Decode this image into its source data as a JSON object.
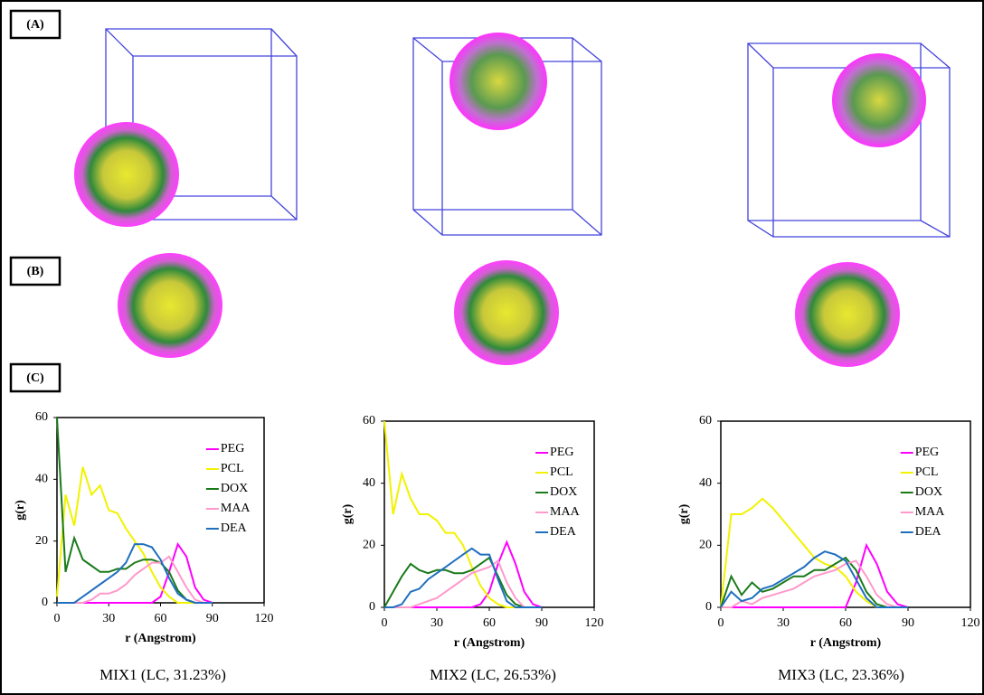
{
  "panel_labels": [
    "(A)",
    "(B)",
    "(C)"
  ],
  "chart_data": [
    {
      "type": "line",
      "title": "MIX1 (LC, 31.23%)",
      "x_label": "r (Angstrom)",
      "y_label": "g(r)",
      "xlim": [
        0,
        120
      ],
      "ylim": [
        0,
        60
      ],
      "xticks": [
        0,
        30,
        60,
        90,
        120
      ],
      "yticks": [
        0,
        20,
        40,
        60
      ],
      "x": [
        0,
        5,
        10,
        15,
        20,
        25,
        30,
        35,
        40,
        45,
        50,
        55,
        60,
        65,
        70,
        75,
        80,
        85,
        90
      ],
      "series": [
        {
          "name": "PEG",
          "color": "#ff00ff",
          "values": [
            0,
            0,
            0,
            0,
            0,
            0,
            0,
            0,
            0,
            0,
            0,
            0,
            2,
            10,
            19,
            15,
            5,
            1,
            0
          ]
        },
        {
          "name": "PCL",
          "color": "#f2f200",
          "values": [
            2,
            35,
            25,
            44,
            35,
            38,
            30,
            29,
            24,
            20,
            16,
            10,
            5,
            2,
            0,
            0,
            0,
            0,
            0
          ]
        },
        {
          "name": "DOX",
          "color": "#1a7a1a",
          "values": [
            60,
            10,
            21,
            14,
            12,
            10,
            10,
            11,
            11,
            13,
            14,
            14,
            13,
            10,
            4,
            1,
            0,
            0,
            0
          ]
        },
        {
          "name": "MAA",
          "color": "#ff99cc",
          "values": [
            0,
            0,
            0,
            0,
            1,
            3,
            3,
            4,
            6,
            9,
            11,
            13,
            13,
            15,
            10,
            5,
            1,
            0,
            0
          ]
        },
        {
          "name": "DEA",
          "color": "#1f6fbf",
          "values": [
            0,
            0,
            0,
            2,
            4,
            6,
            8,
            10,
            13,
            19,
            19,
            18,
            14,
            8,
            3,
            1,
            0,
            0,
            0
          ]
        }
      ]
    },
    {
      "type": "line",
      "title": "MIX2 (LC, 26.53%)",
      "x_label": "r (Angstrom)",
      "y_label": "g(r)",
      "xlim": [
        0,
        120
      ],
      "ylim": [
        0,
        60
      ],
      "xticks": [
        0,
        30,
        60,
        90,
        120
      ],
      "yticks": [
        0,
        20,
        40,
        60
      ],
      "x": [
        0,
        5,
        10,
        15,
        20,
        25,
        30,
        35,
        40,
        45,
        50,
        55,
        60,
        65,
        70,
        75,
        80,
        85,
        90
      ],
      "series": [
        {
          "name": "PEG",
          "color": "#ff00ff",
          "values": [
            0,
            0,
            0,
            0,
            0,
            0,
            0,
            0,
            0,
            0,
            0,
            1,
            5,
            14,
            21,
            14,
            5,
            1,
            0
          ]
        },
        {
          "name": "PCL",
          "color": "#f2f200",
          "values": [
            60,
            30,
            43,
            35,
            30,
            30,
            28,
            24,
            24,
            20,
            13,
            7,
            3,
            1,
            0,
            0,
            0,
            0,
            0
          ]
        },
        {
          "name": "DOX",
          "color": "#1a7a1a",
          "values": [
            0,
            5,
            10,
            14,
            12,
            11,
            12,
            12,
            11,
            11,
            12,
            14,
            16,
            10,
            4,
            1,
            0,
            0,
            0
          ]
        },
        {
          "name": "MAA",
          "color": "#ff99cc",
          "values": [
            0,
            0,
            0,
            0,
            1,
            2,
            3,
            5,
            7,
            9,
            11,
            12,
            13,
            15,
            8,
            3,
            0,
            0,
            0
          ]
        },
        {
          "name": "DEA",
          "color": "#1f6fbf",
          "values": [
            0,
            0,
            1,
            5,
            6,
            9,
            11,
            13,
            15,
            17,
            19,
            17,
            17,
            9,
            2,
            0,
            0,
            0,
            0
          ]
        }
      ]
    },
    {
      "type": "line",
      "title": "MIX3 (LC, 23.36%)",
      "x_label": "r (Angstrom)",
      "y_label": "g(r)",
      "xlim": [
        0,
        120
      ],
      "ylim": [
        0,
        60
      ],
      "xticks": [
        0,
        30,
        60,
        90,
        120
      ],
      "yticks": [
        0,
        20,
        40,
        60
      ],
      "x": [
        0,
        5,
        10,
        15,
        20,
        25,
        30,
        35,
        40,
        45,
        50,
        55,
        60,
        65,
        70,
        75,
        80,
        85,
        90
      ],
      "series": [
        {
          "name": "PEG",
          "color": "#ff00ff",
          "values": [
            0,
            0,
            0,
            0,
            0,
            0,
            0,
            0,
            0,
            0,
            0,
            0,
            0,
            8,
            20,
            14,
            5,
            1,
            0
          ]
        },
        {
          "name": "PCL",
          "color": "#f2f200",
          "values": [
            0,
            30,
            30,
            32,
            35,
            32,
            28,
            24,
            20,
            16,
            14,
            13,
            10,
            5,
            2,
            0,
            0,
            0,
            0
          ]
        },
        {
          "name": "DOX",
          "color": "#1a7a1a",
          "values": [
            0,
            10,
            4,
            8,
            5,
            6,
            8,
            10,
            10,
            12,
            12,
            14,
            16,
            12,
            5,
            1,
            0,
            0,
            0
          ]
        },
        {
          "name": "MAA",
          "color": "#ff99cc",
          "values": [
            0,
            0,
            2,
            1,
            3,
            4,
            5,
            6,
            8,
            10,
            11,
            12,
            14,
            15,
            10,
            4,
            1,
            0,
            0
          ]
        },
        {
          "name": "DEA",
          "color": "#1f6fbf",
          "values": [
            0,
            5,
            2,
            3,
            6,
            7,
            9,
            11,
            13,
            16,
            18,
            17,
            15,
            9,
            3,
            0,
            0,
            0,
            0
          ]
        }
      ]
    }
  ]
}
